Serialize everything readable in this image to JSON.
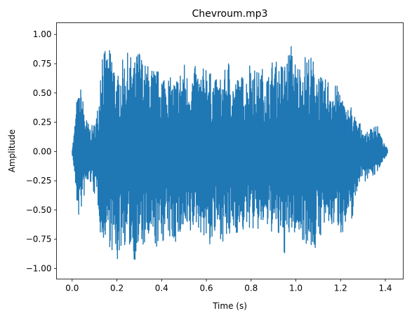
{
  "chart_data": {
    "type": "line",
    "title": "Chevroum.mp3",
    "xlabel": "Time (s)",
    "ylabel": "Amplitude",
    "xlim": [
      -0.07,
      1.48
    ],
    "ylim": [
      -1.09,
      1.1
    ],
    "grid": false,
    "legend": "none",
    "x_ticks": [
      {
        "value": 0.0,
        "label": "0.0"
      },
      {
        "value": 0.2,
        "label": "0.2"
      },
      {
        "value": 0.4,
        "label": "0.4"
      },
      {
        "value": 0.6,
        "label": "0.6"
      },
      {
        "value": 0.8,
        "label": "0.8"
      },
      {
        "value": 1.0,
        "label": "1.0"
      },
      {
        "value": 1.2,
        "label": "1.2"
      },
      {
        "value": 1.4,
        "label": "1.4"
      }
    ],
    "y_ticks": [
      {
        "value": 1.0,
        "label": "1.00"
      },
      {
        "value": 0.75,
        "label": "0.75"
      },
      {
        "value": 0.5,
        "label": "0.50"
      },
      {
        "value": 0.25,
        "label": "0.25"
      },
      {
        "value": 0.0,
        "label": "0.00"
      },
      {
        "value": -0.25,
        "label": "−0.25"
      },
      {
        "value": -0.5,
        "label": "−0.50"
      },
      {
        "value": -0.75,
        "label": "−0.75"
      },
      {
        "value": -1.0,
        "label": "−1.00"
      }
    ],
    "series": [
      {
        "color": "#1f77b4",
        "x": [
          0.0,
          0.01,
          0.02,
          0.03,
          0.04,
          0.06,
          0.08,
          0.1,
          0.12,
          0.13,
          0.15,
          0.18,
          0.2,
          0.22,
          0.25,
          0.28,
          0.3,
          0.32,
          0.35,
          0.38,
          0.4,
          0.42,
          0.45,
          0.48,
          0.5,
          0.52,
          0.55,
          0.58,
          0.6,
          0.62,
          0.65,
          0.68,
          0.7,
          0.72,
          0.75,
          0.78,
          0.8,
          0.82,
          0.85,
          0.88,
          0.9,
          0.92,
          0.95,
          0.98,
          1.0,
          1.02,
          1.05,
          1.08,
          1.1,
          1.12,
          1.15,
          1.18,
          1.2,
          1.22,
          1.25,
          1.27,
          1.29,
          1.31,
          1.33,
          1.35,
          1.37,
          1.39,
          1.41
        ],
        "upper": [
          0.02,
          0.19,
          0.44,
          0.49,
          0.56,
          0.3,
          0.21,
          0.24,
          0.45,
          1.02,
          0.83,
          0.9,
          0.62,
          0.77,
          0.85,
          0.78,
          0.91,
          0.76,
          0.74,
          0.7,
          0.7,
          0.69,
          0.6,
          0.69,
          0.78,
          0.63,
          0.73,
          0.67,
          0.82,
          0.66,
          0.61,
          0.68,
          0.8,
          0.62,
          0.65,
          0.66,
          0.85,
          0.68,
          0.72,
          0.67,
          0.83,
          0.74,
          0.78,
          0.93,
          0.76,
          0.76,
          0.86,
          0.79,
          0.7,
          0.61,
          0.64,
          0.56,
          0.58,
          0.37,
          0.4,
          0.27,
          0.24,
          0.15,
          0.18,
          0.27,
          0.2,
          0.08,
          0.02
        ],
        "lower": [
          -0.02,
          -0.19,
          -0.46,
          -0.58,
          -0.52,
          -0.33,
          -0.27,
          -0.38,
          -0.52,
          -0.83,
          -0.72,
          -0.88,
          -0.99,
          -0.82,
          -0.8,
          -0.94,
          -0.86,
          -0.83,
          -0.81,
          -0.84,
          -0.8,
          -0.73,
          -0.8,
          -0.76,
          -0.72,
          -0.8,
          -0.63,
          -0.71,
          -0.78,
          -0.83,
          -0.71,
          -0.79,
          -0.8,
          -0.69,
          -0.72,
          -0.68,
          -0.65,
          -0.72,
          -0.65,
          -0.69,
          -0.7,
          -0.76,
          -0.89,
          -0.71,
          -0.72,
          -0.74,
          -0.8,
          -0.88,
          -0.8,
          -0.66,
          -0.68,
          -0.62,
          -0.7,
          -0.68,
          -0.6,
          -0.39,
          -0.21,
          -0.26,
          -0.2,
          -0.22,
          -0.15,
          -0.08,
          -0.02
        ]
      }
    ]
  }
}
